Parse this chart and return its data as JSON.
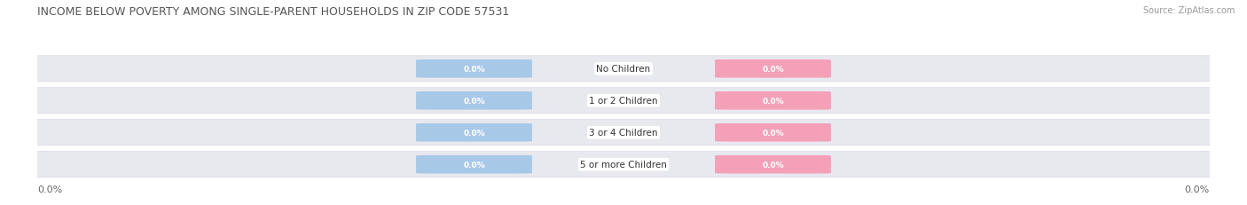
{
  "title": "INCOME BELOW POVERTY AMONG SINGLE-PARENT HOUSEHOLDS IN ZIP CODE 57531",
  "source": "Source: ZipAtlas.com",
  "categories": [
    "No Children",
    "1 or 2 Children",
    "3 or 4 Children",
    "5 or more Children"
  ],
  "father_values": [
    0.0,
    0.0,
    0.0,
    0.0
  ],
  "mother_values": [
    0.0,
    0.0,
    0.0,
    0.0
  ],
  "father_color": "#a8c8e8",
  "mother_color": "#f4a0b8",
  "row_bg_color": "#e8e8ef",
  "row_bg_light": "#eeeeee",
  "background_color": "#ffffff",
  "title_fontsize": 9,
  "source_fontsize": 7,
  "value_fontsize": 6.5,
  "cat_fontsize": 7.5,
  "legend_fontsize": 8,
  "axis_tick_fontsize": 8,
  "figsize": [
    14.06,
    2.32
  ]
}
